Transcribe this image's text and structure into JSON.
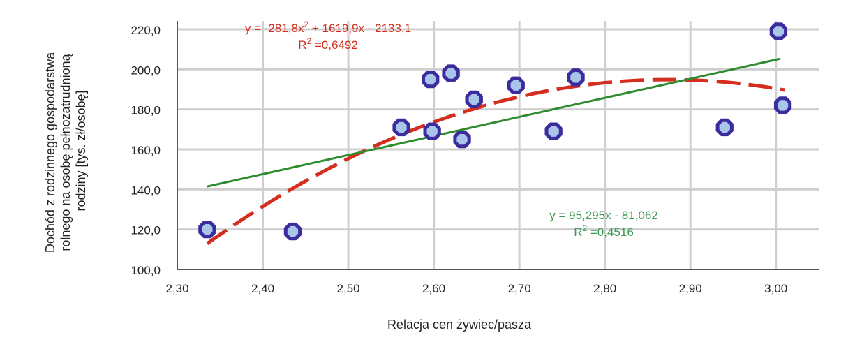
{
  "chart_data": {
    "type": "scatter",
    "xlabel": "Relacja cen żywiec/pasza",
    "ylabel_lines": [
      "Dochód z rodzinnego gospodarstwa",
      "rolnego na osobę pełnozatrudnioną",
      "rodziny [tys. zł/osobę]"
    ],
    "xlim": [
      2.3,
      3.05
    ],
    "ylim": [
      100,
      220
    ],
    "x_ticks": [
      "2,30",
      "2,40",
      "2,50",
      "2,60",
      "2,70",
      "2,80",
      "2,90",
      "3,00"
    ],
    "y_ticks": [
      "100,0",
      "120,0",
      "140,0",
      "160,0",
      "180,0",
      "200,0",
      "220,0"
    ],
    "grid": true,
    "legend": "none",
    "points": [
      {
        "x": 2.335,
        "y": 120
      },
      {
        "x": 2.435,
        "y": 119
      },
      {
        "x": 2.562,
        "y": 171
      },
      {
        "x": 2.596,
        "y": 195
      },
      {
        "x": 2.598,
        "y": 169
      },
      {
        "x": 2.62,
        "y": 198
      },
      {
        "x": 2.633,
        "y": 165
      },
      {
        "x": 2.647,
        "y": 185
      },
      {
        "x": 2.696,
        "y": 192
      },
      {
        "x": 2.74,
        "y": 169
      },
      {
        "x": 2.766,
        "y": 196
      },
      {
        "x": 2.94,
        "y": 171
      },
      {
        "x": 3.003,
        "y": 219
      },
      {
        "x": 3.008,
        "y": 182
      }
    ],
    "polynomial_trend": {
      "coefficients": [
        -281.8,
        1619.9,
        -2133.1
      ],
      "x_range": [
        2.335,
        3.01
      ],
      "equation_label": "y = -281,8x",
      "equation_exp": "2",
      "equation_rest": " + 1619,9x - 2133,1",
      "r2_prefix": "R",
      "r2_exp": "2",
      "r2_value": " =0,6492",
      "color": "#d42e1f"
    },
    "linear_trend": {
      "slope": 95.295,
      "intercept": -81.062,
      "x_range": [
        2.335,
        3.005
      ],
      "equation_label": "y = 95,295x - 81,062",
      "r2_prefix": "R",
      "r2_exp": "2",
      "r2_value": " =0,4516",
      "color": "#2e8b2e",
      "label_color": "#3a9a52"
    },
    "colors": {
      "marker_fill": "#a9c5ea",
      "marker_edge": "#3b2d9e",
      "grid": "#cfcfcf",
      "axis": "#555555"
    }
  }
}
